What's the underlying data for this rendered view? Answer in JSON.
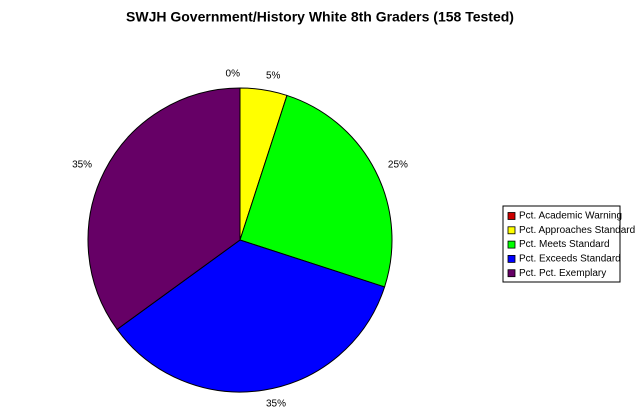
{
  "chart_data": {
    "type": "pie",
    "title": "SWJH Government/History White 8th Graders (158 Tested)",
    "categories": [
      "Pct. Academic Warning",
      "Pct. Approaches Standard",
      "Pct. Meets Standard",
      "Pct. Exceeds Standard",
      "Pct. Pct. Exemplary"
    ],
    "values": [
      0,
      5,
      25,
      35,
      35
    ],
    "value_labels": [
      "0%",
      "5%",
      "25%",
      "35%",
      "35%"
    ],
    "colors": [
      "#cc0000",
      "#ffff00",
      "#00ff00",
      "#0000ff",
      "#660066"
    ],
    "legend": "right"
  }
}
